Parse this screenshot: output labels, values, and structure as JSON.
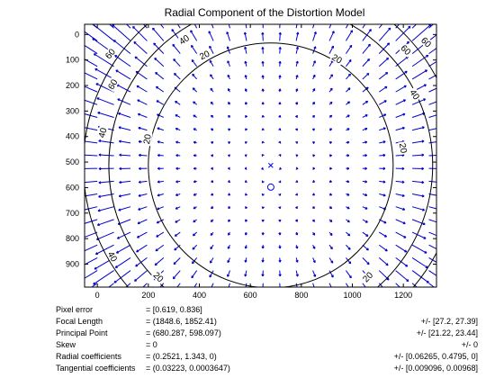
{
  "chart_data": {
    "type": "vector_field_contour",
    "title": "Radial Component of the Distortion Model",
    "xlim": [
      -50,
      1330
    ],
    "ylim": [
      990,
      -40
    ],
    "x_ticks": [
      0,
      200,
      400,
      600,
      800,
      1000,
      1200
    ],
    "y_ticks": [
      0,
      100,
      200,
      300,
      400,
      500,
      600,
      700,
      800,
      900
    ],
    "image_center": [
      680,
      513
    ],
    "principal_point": [
      680.287,
      598.097
    ],
    "distortion_center": [
      680,
      513
    ],
    "contours": [
      {
        "level": "20",
        "radius": 480
      },
      {
        "level": "40",
        "radius": 635
      },
      {
        "level": "60",
        "radius": 735
      }
    ],
    "contour_labels": [
      {
        "text": "20",
        "x": 420,
        "y": 80,
        "angle": -25
      },
      {
        "text": "20",
        "x": 940,
        "y": 95,
        "angle": 30
      },
      {
        "text": "20",
        "x": 1200,
        "y": 445,
        "angle": 80
      },
      {
        "text": "20",
        "x": 195,
        "y": 410,
        "angle": -80
      },
      {
        "text": "20",
        "x": 240,
        "y": 950,
        "angle": 45
      },
      {
        "text": "20",
        "x": 1060,
        "y": 950,
        "angle": -45
      },
      {
        "text": "40",
        "x": 340,
        "y": 20,
        "angle": -35
      },
      {
        "text": "40",
        "x": 1245,
        "y": 235,
        "angle": 55
      },
      {
        "text": "40",
        "x": 20,
        "y": 385,
        "angle": -75
      },
      {
        "text": "40",
        "x": 60,
        "y": 870,
        "angle": 60
      },
      {
        "text": "60",
        "x": 50,
        "y": 75,
        "angle": -50
      },
      {
        "text": "60",
        "x": 60,
        "y": 195,
        "angle": -60
      },
      {
        "text": "60",
        "x": 1210,
        "y": 60,
        "angle": 45
      },
      {
        "text": "60",
        "x": 1290,
        "y": 30,
        "angle": 45
      }
    ],
    "arrow_grid": {
      "x_step": 65,
      "y_step": 50
    }
  },
  "info": {
    "rows": [
      {
        "label": "Pixel error",
        "value": "= [0.619, 0.836]",
        "error": ""
      },
      {
        "label": "Focal Length",
        "value": "= (1848.6, 1852.41)",
        "error": "+/- [27.2, 27.39]"
      },
      {
        "label": "Principal Point",
        "value": "= (680.287, 598.097)",
        "error": "+/- [21.22, 23.44]"
      },
      {
        "label": "Skew",
        "value": "= 0",
        "error": "+/- 0"
      },
      {
        "label": "Radial coefficients",
        "value": "= (0.2521, 1.343, 0)",
        "error": "+/- [0.06265, 0.4795, 0]"
      },
      {
        "label": "Tangential coefficients",
        "value": "= (0.03223, 0.0003647)",
        "error": "+/- [0.009096, 0.00968]"
      }
    ]
  },
  "colors": {
    "arrow": "#0000cc",
    "contour": "#000000",
    "marker": "#0000ff"
  }
}
